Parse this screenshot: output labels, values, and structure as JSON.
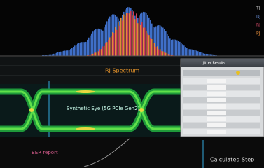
{
  "legend": [
    "TJ",
    "DJ",
    "RJ",
    "PJ"
  ],
  "panels": {
    "spectrum_title": "RJ Spectrum",
    "eye_title": "Synthetic Eye (5G PCIe Gen2)",
    "ber_title": "BER report",
    "step_title": "Calculated Step"
  },
  "dialog": {
    "title": "Jitter Results"
  }
}
